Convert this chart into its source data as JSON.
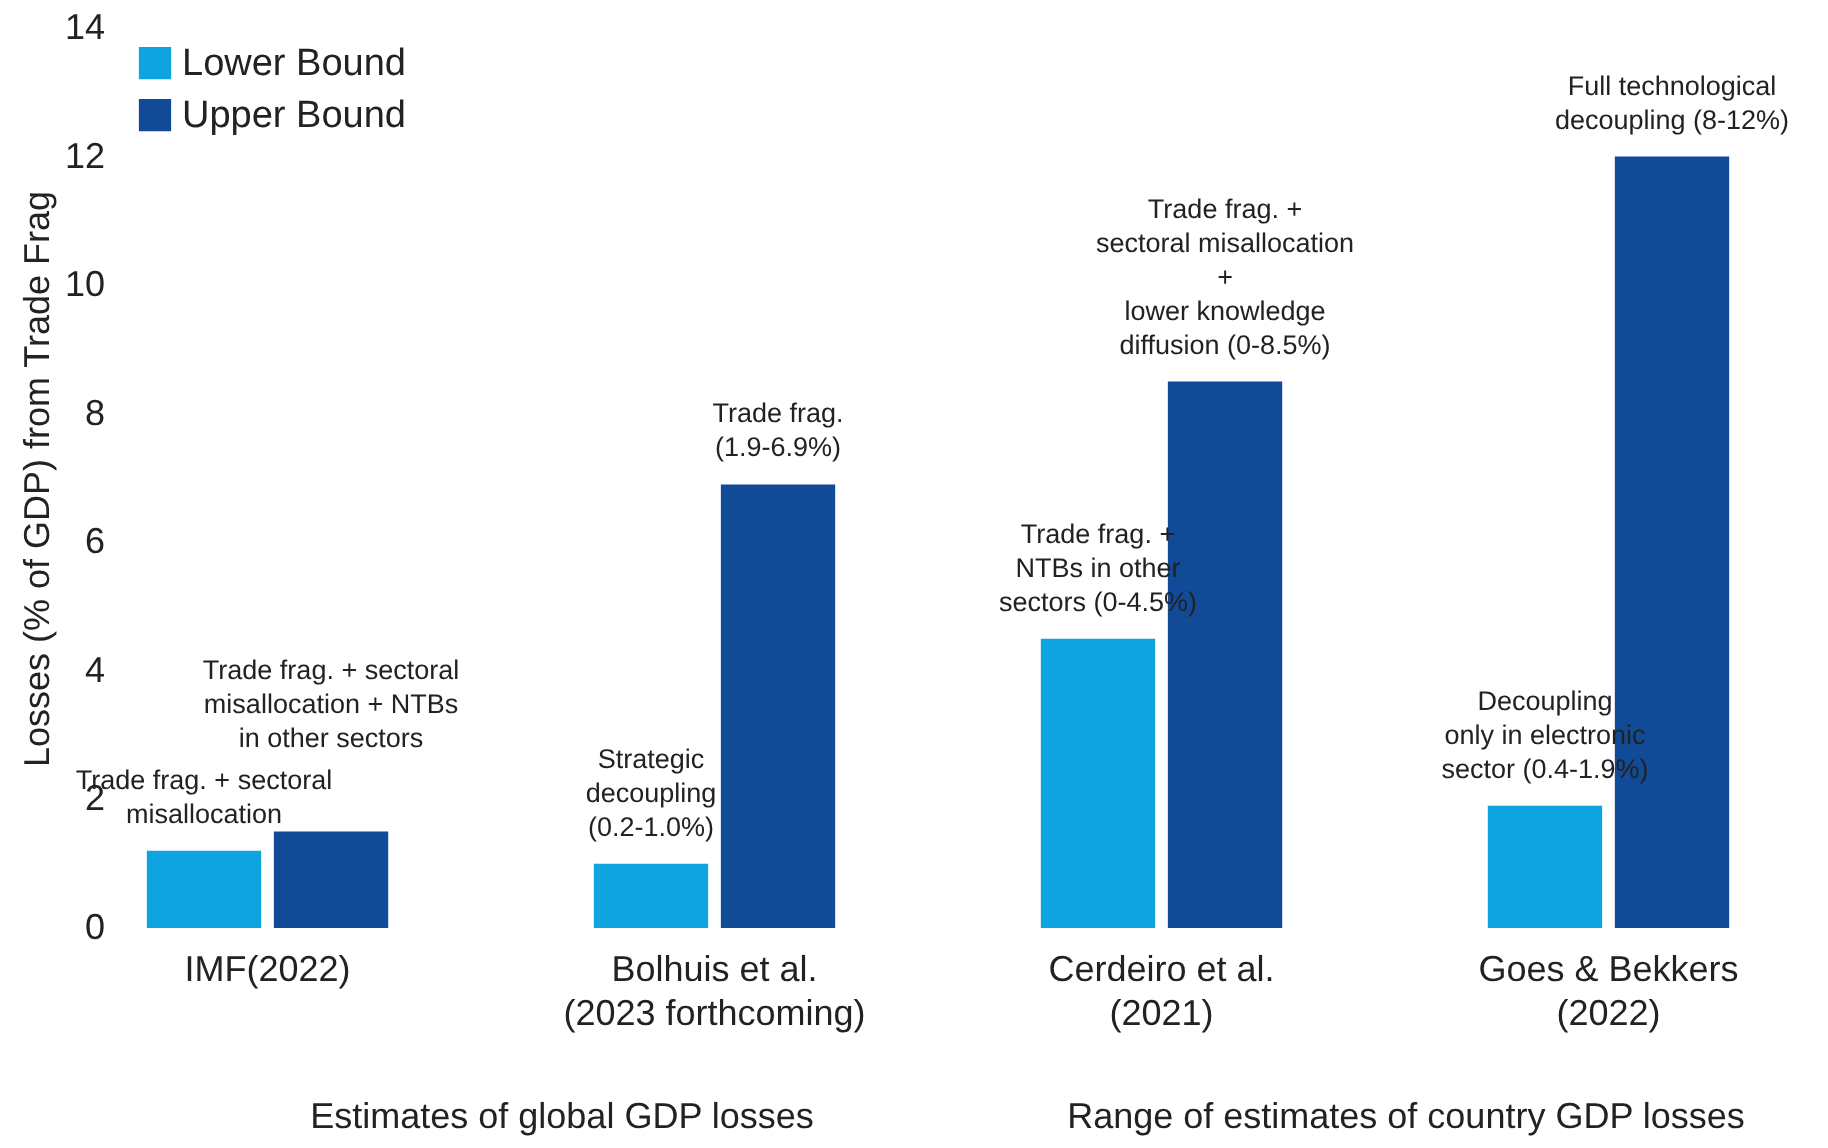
{
  "chart_data": {
    "type": "bar",
    "ylabel": "Losses (% of GDP) from Trade Frag",
    "categories": [
      "IMF(2022)",
      "Bolhuis et al.\n(2023 forthcoming)",
      "Cerdeiro et al.\n(2021)",
      "Goes & Bekkers\n(2022)"
    ],
    "series": [
      {
        "name": "Lower Bound",
        "color": "#0fa3e0",
        "values": [
          1.2,
          1.0,
          4.5,
          1.9
        ]
      },
      {
        "name": "Upper Bound",
        "color": "#114a96",
        "values": [
          1.5,
          6.9,
          8.5,
          12.0
        ]
      }
    ],
    "ylim": [
      0,
      14
    ],
    "yticks": [
      0,
      2,
      4,
      6,
      8,
      10,
      12,
      14
    ],
    "grid": false,
    "legend": "top left",
    "annotations": [
      {
        "text": "Trade frag. + sectoral\nmisallocation",
        "x": "IMF(2022)",
        "y": 1.2
      },
      {
        "text": "Trade frag. + sectoral\nmisallocation + NTBs\nin other sectors",
        "x": "IMF(2022)",
        "y": 1.5
      },
      {
        "text": "Strategic\ndecoupling\n(0.2-1.0%)",
        "x": "Bolhuis et al.\n(2023 forthcoming)",
        "y": 1.0
      },
      {
        "text": "Trade frag.\n(1.9-6.9%)",
        "x": "Bolhuis et al.\n(2023 forthcoming)",
        "y": 6.9
      },
      {
        "text": "Trade frag. +\nNTBs in other\nsectors (0-4.5%)",
        "x": "Cerdeiro et al.\n(2021)",
        "y": 4.5
      },
      {
        "text": "Trade frag. +\nsectoral misallocation\n+\nlower knowledge\ndiffusion (0-8.5%)",
        "x": "Cerdeiro et al.\n(2021)",
        "y": 8.5
      },
      {
        "text": "Decoupling\nonly in electronic\nsector (0.4-1.9%)",
        "x": "Goes & Bekkers\n(2022)",
        "y": 1.9
      },
      {
        "text": "Full technological\ndecoupling (8-12%)",
        "x": "Goes & Bekkers\n(2022)",
        "y": 12.0
      },
      "Estimates of global GDP losses",
      "Range of estimates of country GDP losses"
    ]
  }
}
